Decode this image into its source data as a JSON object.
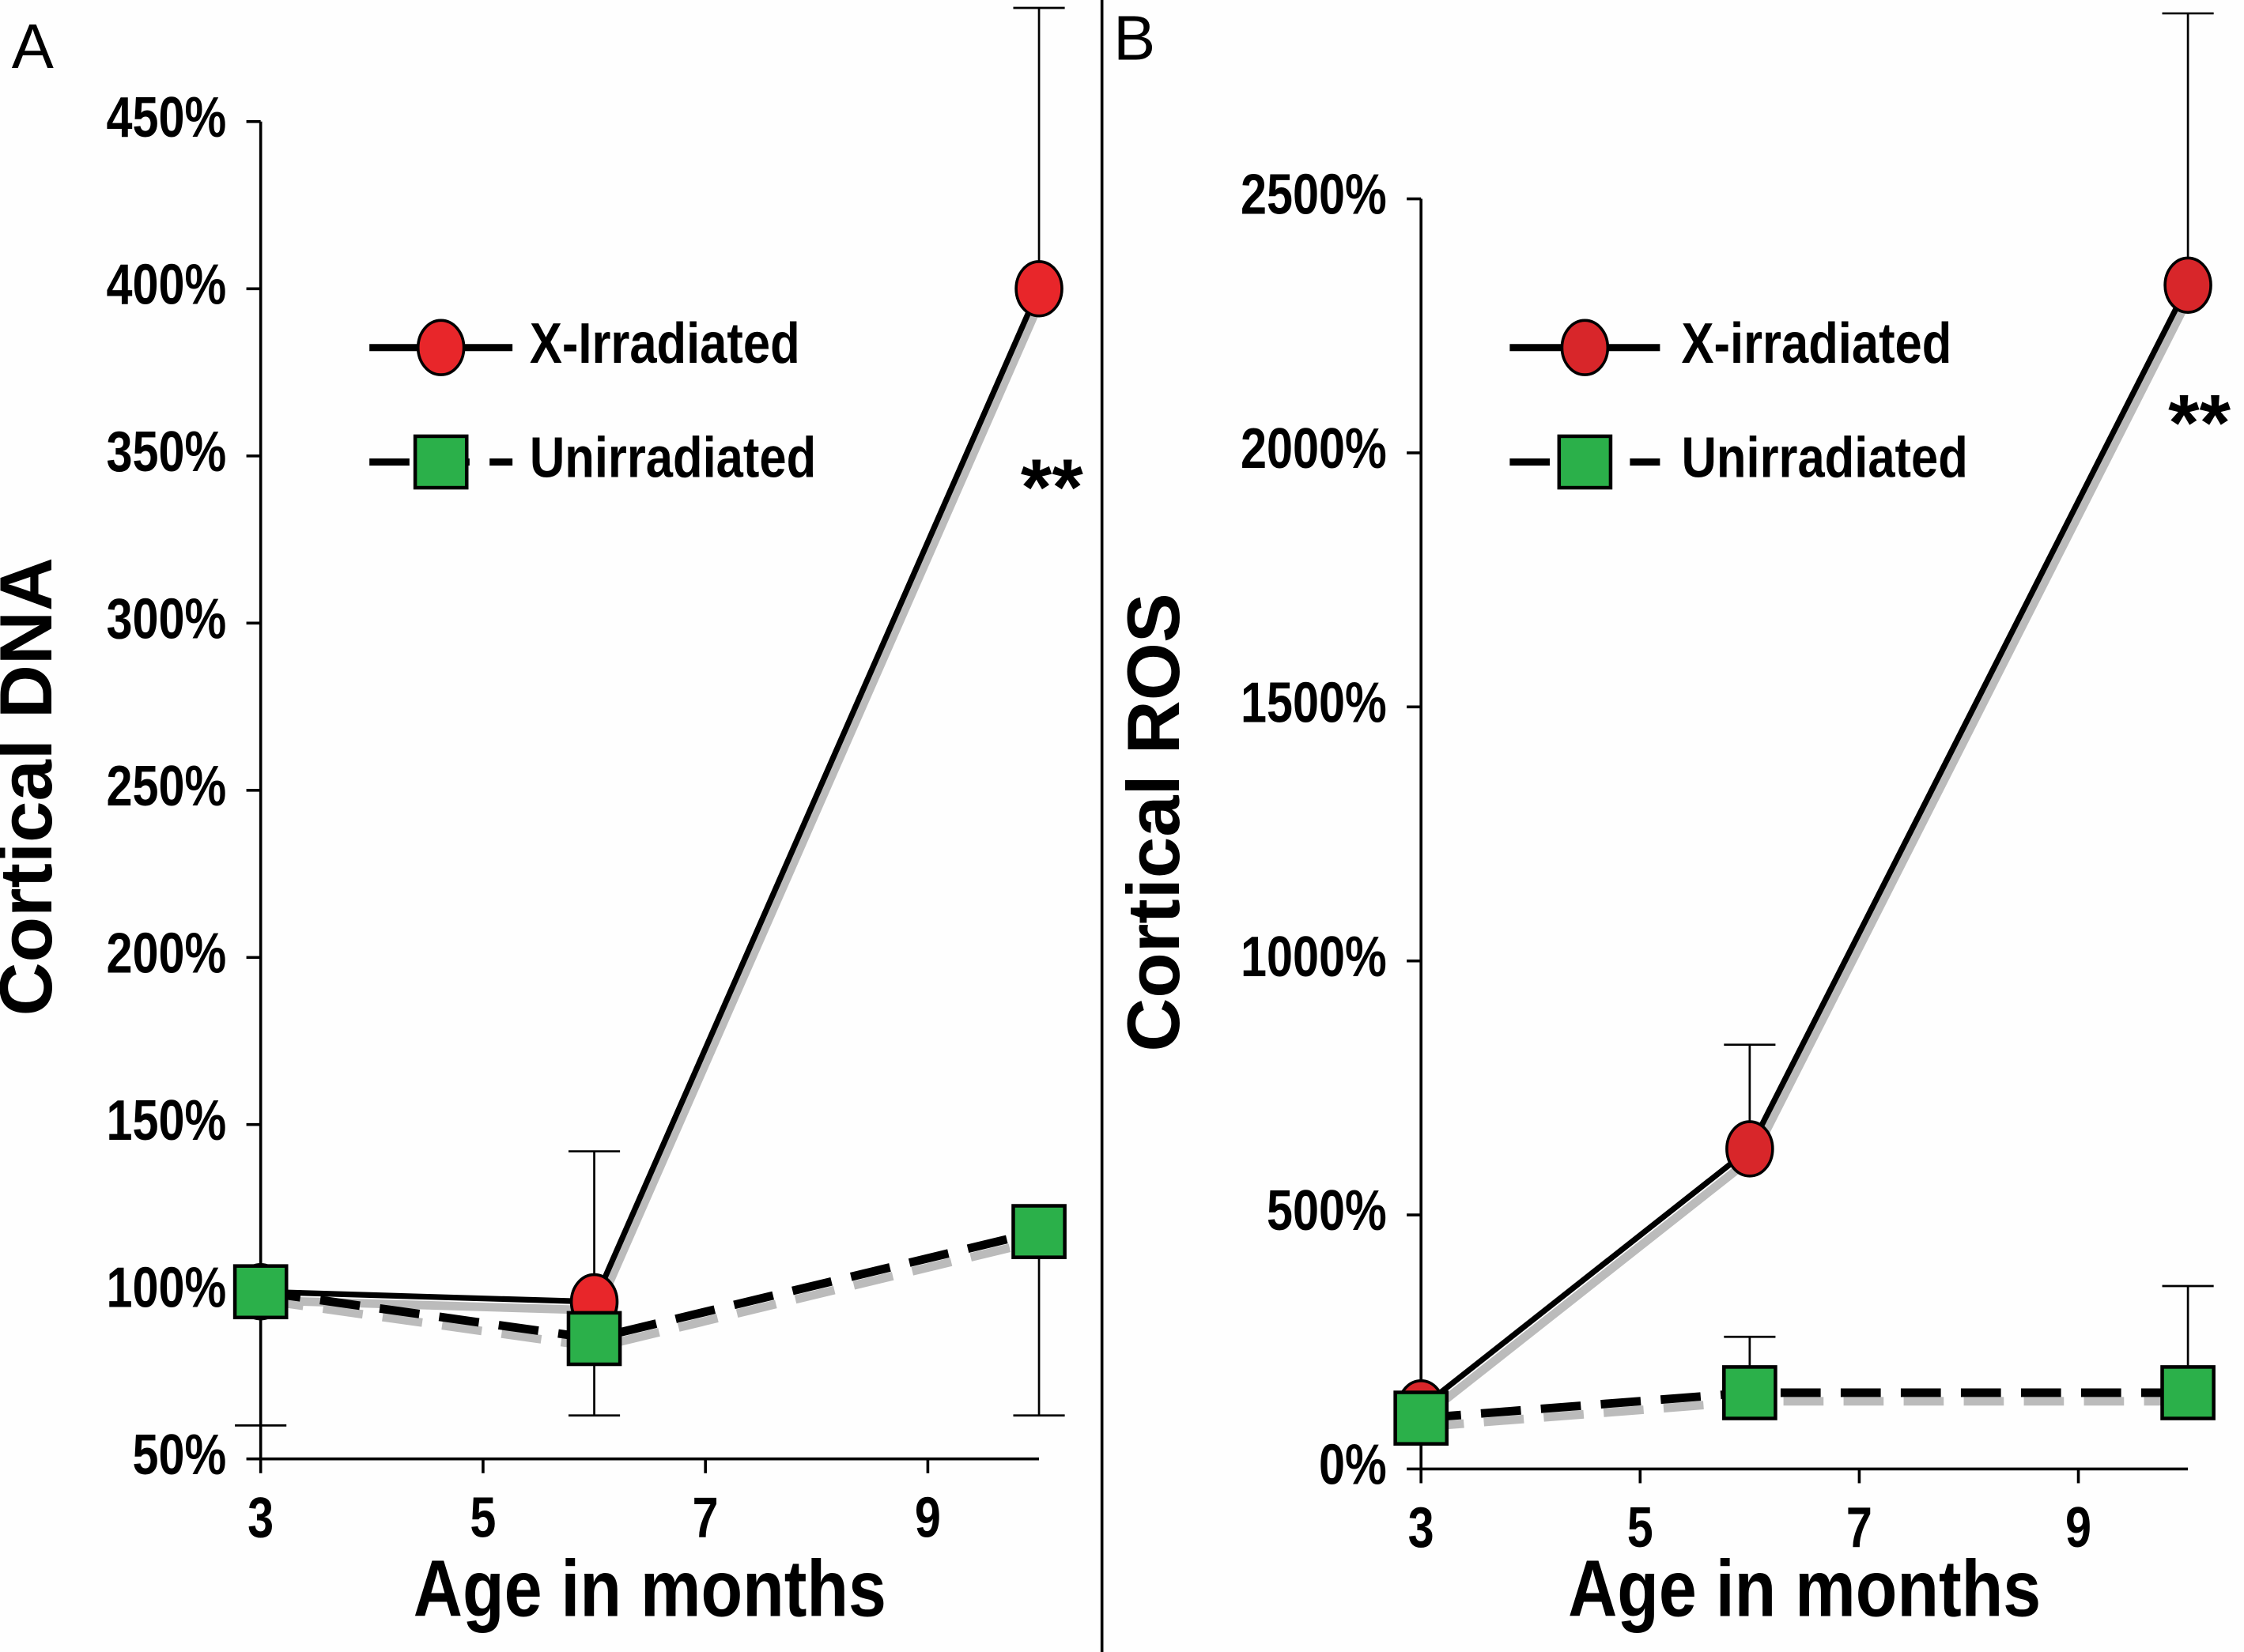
{
  "chart_data": [
    {
      "type": "line",
      "panel_label": "A",
      "xlabel": "Age in months",
      "ylabel": "Cortical DNA",
      "x": [
        3,
        6,
        10
      ],
      "xlim": [
        3,
        10
      ],
      "xticks": [
        3,
        5,
        7,
        9
      ],
      "ylim": [
        50,
        450
      ],
      "yticks": [
        {
          "value": 50,
          "label": "50%"
        },
        {
          "value": 100,
          "label": "100%"
        },
        {
          "value": 150,
          "label": "150%"
        },
        {
          "value": 200,
          "label": "200%"
        },
        {
          "value": 250,
          "label": "250%"
        },
        {
          "value": 300,
          "label": "300%"
        },
        {
          "value": 350,
          "label": "350%"
        },
        {
          "value": 400,
          "label": "400%"
        },
        {
          "value": 450,
          "label": "450%"
        }
      ],
      "series": [
        {
          "name": "X-Irradiated",
          "color": "#e8262a",
          "marker": "circle",
          "dashed": false,
          "error_direction": "up",
          "values": [
            100,
            97,
            400
          ],
          "errors": [
            null,
            45,
            84
          ]
        },
        {
          "name": "Unirradiated",
          "color": "#2bb04a",
          "marker": "square",
          "dashed": true,
          "error_direction": "down",
          "values": [
            100,
            86,
            118
          ],
          "errors": [
            40,
            23,
            55
          ]
        }
      ],
      "annotation": "**"
    },
    {
      "type": "line",
      "panel_label": "B",
      "xlabel": "Age in months",
      "ylabel": "Cortical ROS",
      "x": [
        3,
        6,
        10
      ],
      "xlim": [
        3,
        10
      ],
      "xticks": [
        3,
        5,
        7,
        9
      ],
      "ylim": [
        0,
        2500
      ],
      "yticks": [
        {
          "value": 0,
          "label": "0%"
        },
        {
          "value": 500,
          "label": "500%"
        },
        {
          "value": 1000,
          "label": "1000%"
        },
        {
          "value": 1500,
          "label": "1500%"
        },
        {
          "value": 2000,
          "label": "2000%"
        },
        {
          "value": 2500,
          "label": "2500%"
        }
      ],
      "series": [
        {
          "name": "X-irradiated",
          "color": "#d8262a",
          "marker": "circle",
          "dashed": false,
          "error_direction": "up",
          "values": [
            120,
            630,
            2330
          ],
          "errors": [
            null,
            205,
            535
          ]
        },
        {
          "name": "Unirradiated",
          "color": "#2bb04a",
          "marker": "square",
          "dashed": true,
          "error_direction": "up",
          "values": [
            100,
            150,
            150
          ],
          "errors": [
            null,
            110,
            210
          ]
        }
      ],
      "annotation": "**"
    }
  ]
}
